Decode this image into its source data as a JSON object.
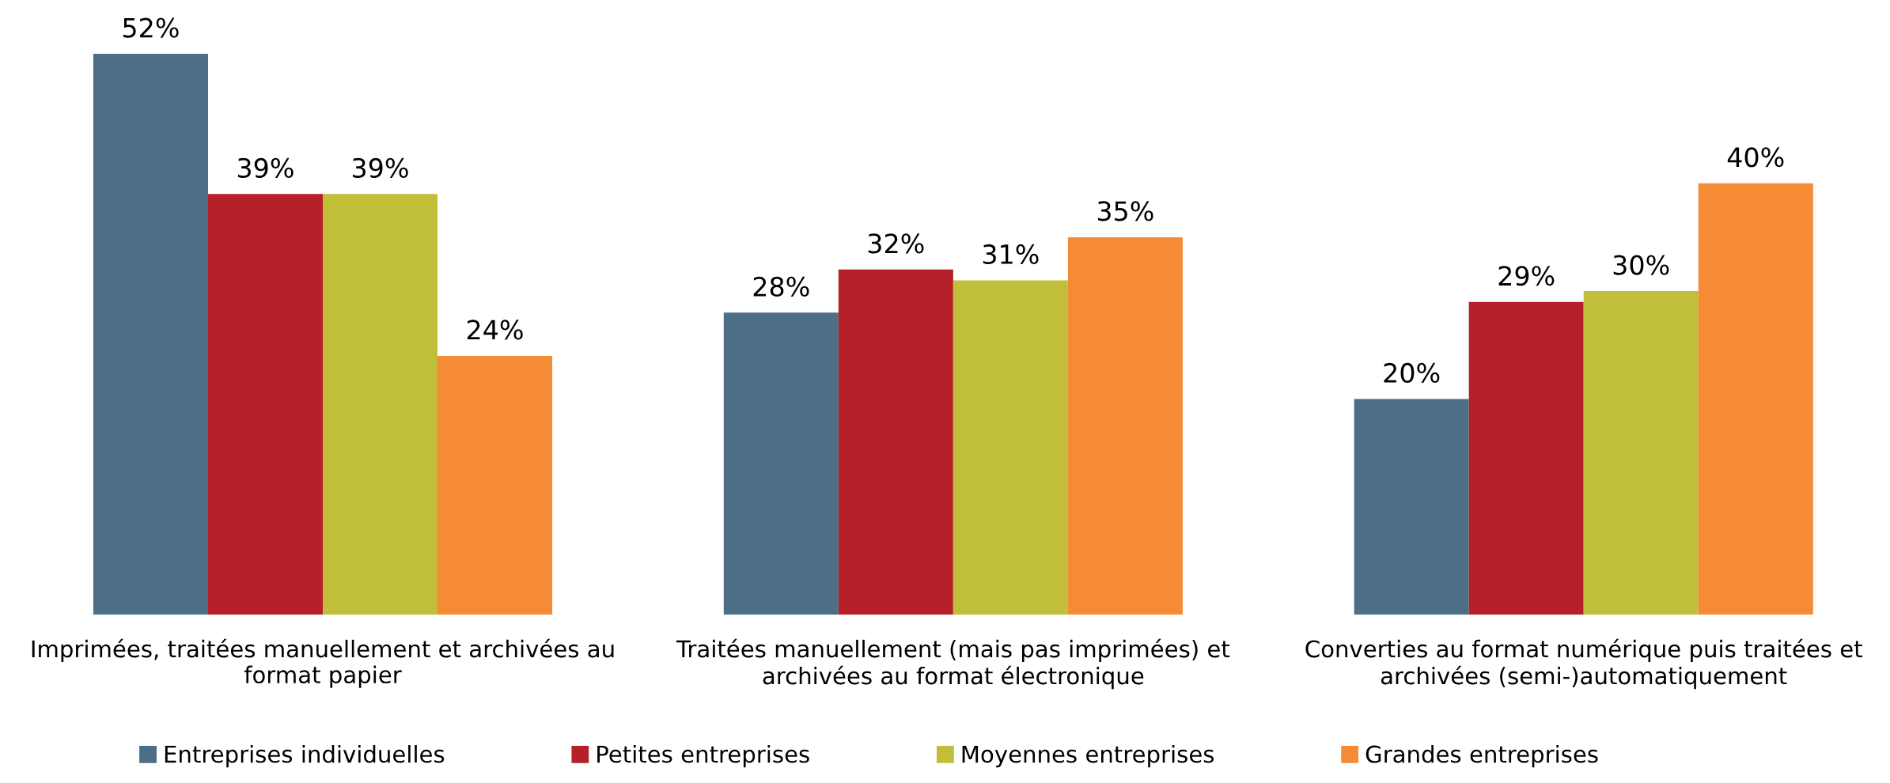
{
  "chart_data": {
    "type": "bar",
    "categories": [
      "Imprimées, traitées manuellement et archivées au\nformat papier",
      "Traitées manuellement (mais pas imprimées) et\narchivées au format électronique",
      "Converties au format numérique puis traitées et\narchivées (semi-)automatiquement"
    ],
    "series": [
      {
        "name": "Entreprises individuelles",
        "color": "#4d6e87",
        "values": [
          52,
          28,
          20
        ],
        "value_labels": [
          "52%",
          "28%",
          "20%"
        ]
      },
      {
        "name": "Petites entreprises",
        "color": "#b52029",
        "values": [
          39,
          32,
          29
        ],
        "value_labels": [
          "39%",
          "32%",
          "29%"
        ]
      },
      {
        "name": "Moyennes entreprises",
        "color": "#c1bf3a",
        "values": [
          39,
          31,
          30
        ],
        "value_labels": [
          "39%",
          "31%",
          "30%"
        ]
      },
      {
        "name": "Grandes entreprises",
        "color": "#f58c35",
        "values": [
          24,
          35,
          40
        ],
        "value_labels": [
          "24%",
          "35%",
          "40%"
        ]
      }
    ],
    "legend": "bottom",
    "grid": false
  }
}
